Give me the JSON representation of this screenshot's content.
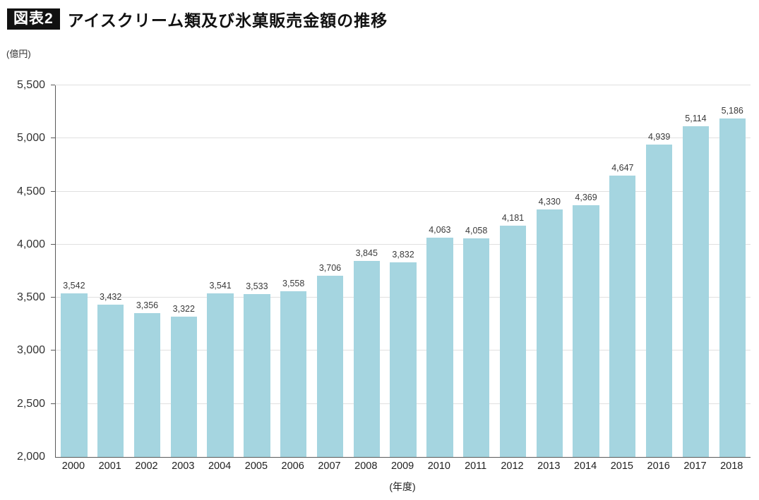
{
  "header": {
    "badge": "図表2",
    "title": "アイスクリーム類及び氷菓販売金額の推移"
  },
  "chart_data": {
    "type": "bar",
    "title": "アイスクリーム類及び氷菓販売金額の推移",
    "unit_label": "(億円)",
    "xlabel": "(年度)",
    "ylabel": "",
    "categories": [
      "2000",
      "2001",
      "2002",
      "2003",
      "2004",
      "2005",
      "2006",
      "2007",
      "2008",
      "2009",
      "2010",
      "2011",
      "2012",
      "2013",
      "2014",
      "2015",
      "2016",
      "2017",
      "2018"
    ],
    "values": [
      3542,
      3432,
      3356,
      3322,
      3541,
      3533,
      3558,
      3706,
      3845,
      3832,
      4063,
      4058,
      4181,
      4330,
      4369,
      4647,
      4939,
      5114,
      5186
    ],
    "ylim": [
      2000,
      5500
    ],
    "ytick_step": 500,
    "grid": true,
    "legend": "none",
    "bar_color": "#a5d5e0",
    "axis_color": "#595959",
    "grid_color": "#e0e0e0"
  }
}
